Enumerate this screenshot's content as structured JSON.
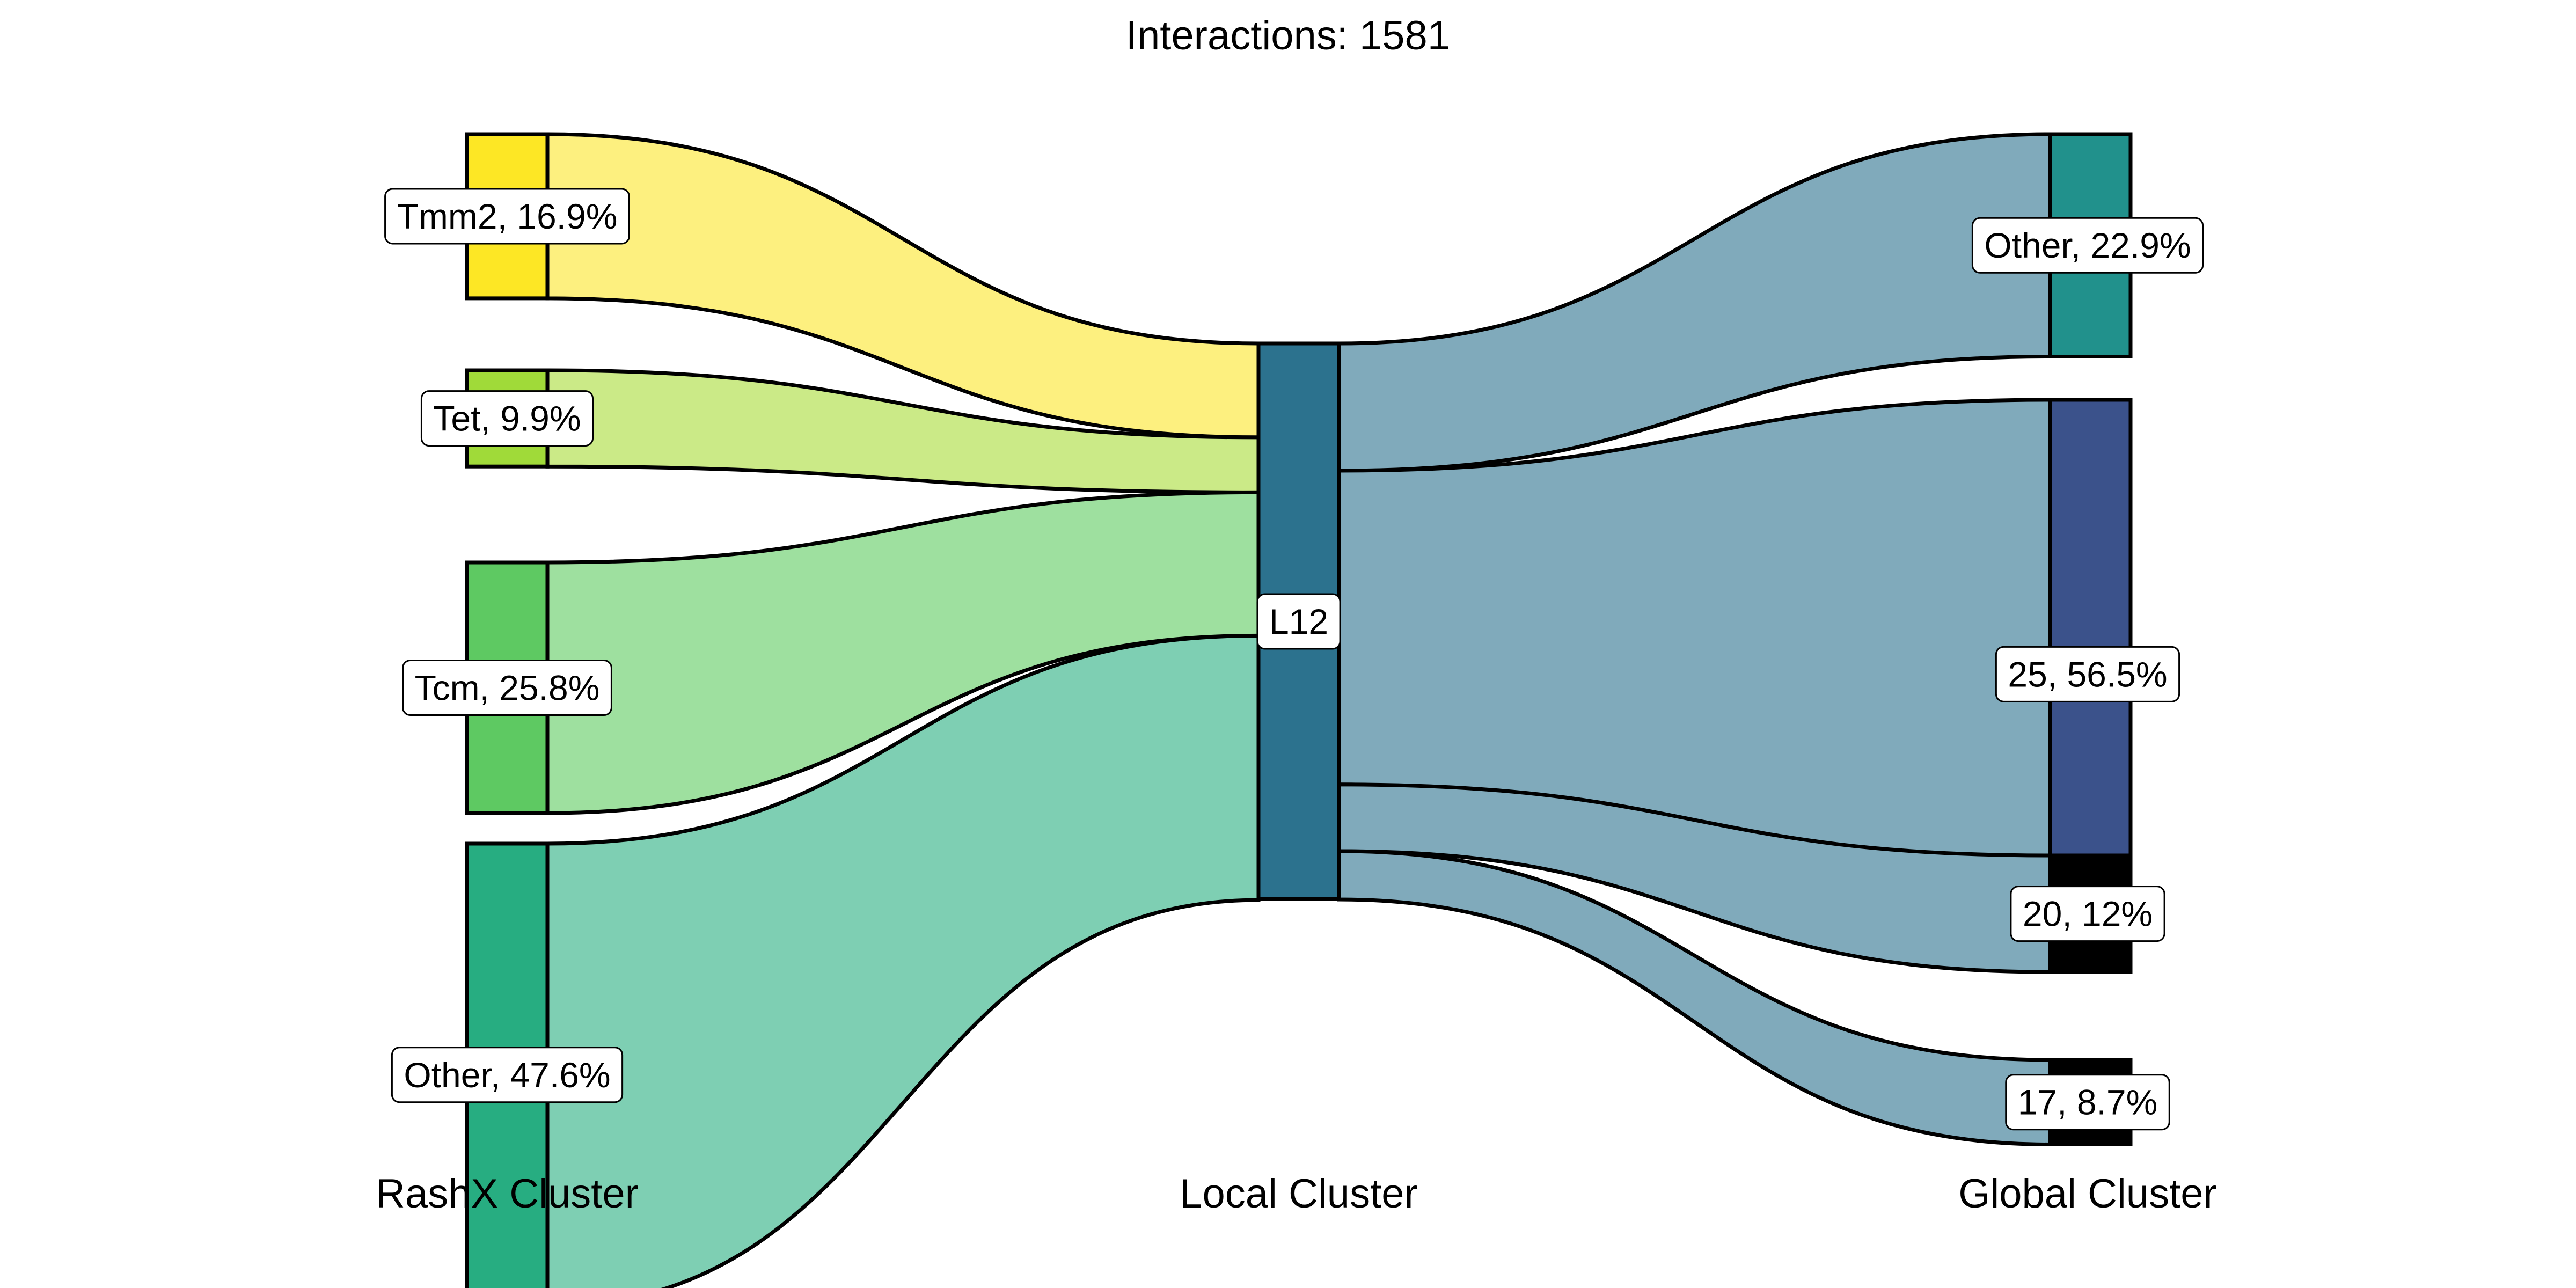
{
  "title": "Interactions: 1581",
  "axis_titles": {
    "left": "RashX Cluster",
    "middle": "Local Cluster",
    "right": "Global Cluster"
  },
  "chart_data": {
    "type": "sankey",
    "title": "Interactions: 1581",
    "total_interactions": 1581,
    "axes": [
      "RashX Cluster",
      "Local Cluster",
      "Global Cluster"
    ],
    "nodes": {
      "left": [
        {
          "id": "Tmm2",
          "label": "Tmm2, 16.9%",
          "percent": 16.9,
          "color": "#fde725"
        },
        {
          "id": "Tet",
          "label": "Tet, 9.9%",
          "percent": 9.9,
          "color": "#a0da39"
        },
        {
          "id": "Tcm",
          "label": "Tcm, 25.8%",
          "percent": 25.8,
          "color": "#5ec962"
        },
        {
          "id": "Other-left",
          "label": "Other, 47.6%",
          "percent": 47.6,
          "color": "#27ad81"
        }
      ],
      "middle": [
        {
          "id": "L12",
          "label": "L12",
          "percent": 100,
          "color": "#2c728e"
        }
      ],
      "right": [
        {
          "id": "Other-right",
          "label": "Other, 22.9%",
          "percent": 22.9,
          "color": "#21918c"
        },
        {
          "id": "25",
          "label": "25, 56.5%",
          "percent": 56.5,
          "color": "#3b528b"
        },
        {
          "id": "20",
          "label": "20, 12%",
          "percent": 12.0,
          "color": "#000000"
        },
        {
          "id": "17",
          "label": "17, 8.7%",
          "percent": 8.7,
          "color": "#000000"
        }
      ]
    },
    "flows": [
      {
        "from": "Tmm2",
        "to": "L12",
        "percent": 16.9,
        "color": "#fdf07f"
      },
      {
        "from": "Tet",
        "to": "L12",
        "percent": 9.9,
        "color": "#cbea87"
      },
      {
        "from": "Tcm",
        "to": "L12",
        "percent": 25.8,
        "color": "#9ee09f"
      },
      {
        "from": "Other-left",
        "to": "L12",
        "percent": 47.6,
        "color": "#7ecfb3"
      },
      {
        "from": "L12",
        "to": "Other-right",
        "percent": 22.9,
        "color": "#80aabb"
      },
      {
        "from": "L12",
        "to": "25",
        "percent": 56.5,
        "color": "#80aabb"
      },
      {
        "from": "L12",
        "to": "20",
        "percent": 12.0,
        "color": "#80aabb"
      },
      {
        "from": "L12",
        "to": "17",
        "percent": 8.7,
        "color": "#80aabb"
      }
    ]
  }
}
